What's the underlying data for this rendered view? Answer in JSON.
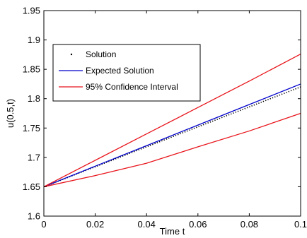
{
  "chart_data": {
    "type": "line",
    "title": "",
    "xlabel": "Time t",
    "ylabel": "u(0.5,t)",
    "xlim": [
      0,
      0.1
    ],
    "ylim": [
      1.6,
      1.95
    ],
    "grid": false,
    "legend_position": "upper-left",
    "x_ticks": [
      0,
      0.02,
      0.04,
      0.06,
      0.08,
      0.1
    ],
    "x_tick_labels": [
      "0",
      "0.02",
      "0.04",
      "0.06",
      "0.08",
      "0.1"
    ],
    "y_ticks": [
      1.6,
      1.65,
      1.7,
      1.75,
      1.8,
      1.85,
      1.9,
      1.95
    ],
    "y_tick_labels": [
      "1.6",
      "1.65",
      "1.7",
      "1.75",
      "1.8",
      "1.85",
      "1.9",
      "1.95"
    ],
    "series": [
      {
        "name": "Solution",
        "style": "dotted",
        "color": "#000000",
        "x": [
          0,
          0.01,
          0.02,
          0.03,
          0.04,
          0.05,
          0.06,
          0.07,
          0.08,
          0.09,
          0.1
        ],
        "y": [
          1.65,
          1.667,
          1.684,
          1.701,
          1.718,
          1.735,
          1.752,
          1.769,
          1.786,
          1.803,
          1.82
        ]
      },
      {
        "name": "Expected Solution",
        "style": "solid",
        "color": "#0000cc",
        "x": [
          0,
          0.02,
          0.04,
          0.06,
          0.08,
          0.1
        ],
        "y": [
          1.65,
          1.685,
          1.72,
          1.755,
          1.79,
          1.825
        ]
      },
      {
        "name": "95% Confidence Interval",
        "style": "solid",
        "color": "#e8151c",
        "x": [
          0,
          0.02,
          0.04,
          0.06,
          0.08,
          0.1
        ],
        "y": [
          1.65,
          1.695,
          1.74,
          1.785,
          1.83,
          1.876
        ]
      },
      {
        "name": "",
        "style": "solid",
        "color": "#e8151c",
        "x": [
          0,
          0.02,
          0.04,
          0.06,
          0.08,
          0.1
        ],
        "y": [
          1.65,
          1.669,
          1.69,
          1.718,
          1.745,
          1.775
        ]
      }
    ]
  }
}
